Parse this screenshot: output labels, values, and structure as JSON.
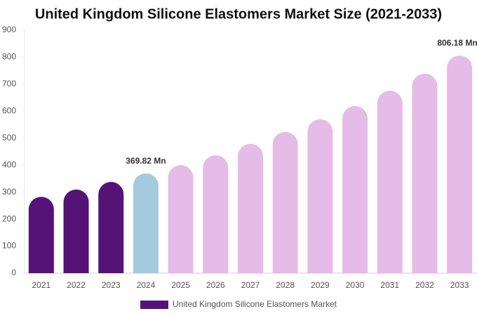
{
  "chart_data": {
    "type": "bar",
    "title": "United Kingdom Silicone Elastomers Market Size (2021-2033)",
    "categories": [
      "2021",
      "2022",
      "2023",
      "2024",
      "2025",
      "2026",
      "2027",
      "2028",
      "2029",
      "2030",
      "2031",
      "2032",
      "2033"
    ],
    "series": [
      {
        "name": "United Kingdom Silicone Elastomers Market",
        "color": "#561377",
        "values": [
          283,
          310,
          338,
          369.82,
          400,
          437,
          479,
          523,
          570,
          619,
          676,
          739,
          806.18
        ],
        "value_labels": [
          null,
          null,
          null,
          "369.82 Mn",
          null,
          null,
          null,
          null,
          null,
          null,
          null,
          null,
          "806.18 Mn"
        ],
        "bar_colors": [
          "#561377",
          "#561377",
          "#561377",
          "#a4cadd",
          "#e5bbe7",
          "#e5bbe7",
          "#e5bbe7",
          "#e5bbe7",
          "#e5bbe7",
          "#e5bbe7",
          "#e5bbe7",
          "#e5bbe7",
          "#e5bbe7"
        ]
      }
    ],
    "ylim": [
      0,
      900
    ],
    "yticks": [
      0,
      100,
      200,
      300,
      400,
      500,
      600,
      700,
      800,
      900
    ],
    "legend": "bottom"
  }
}
